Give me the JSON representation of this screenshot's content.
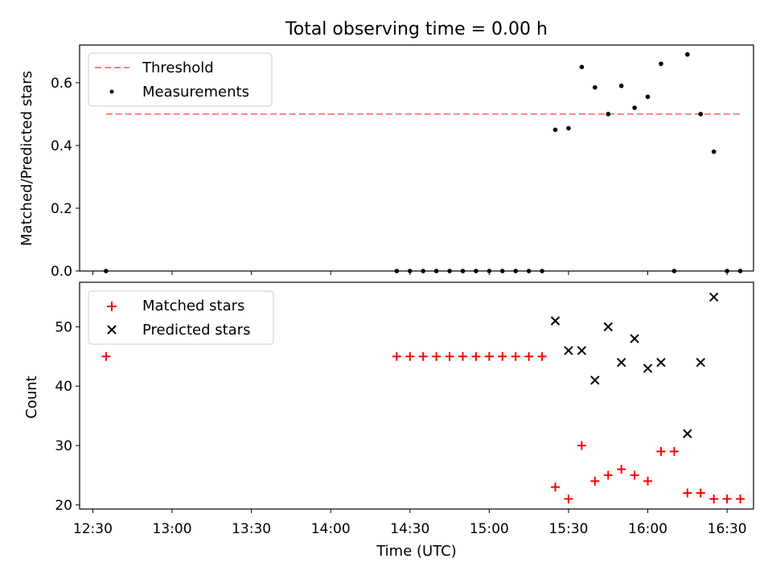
{
  "title": "Total observing time = 0.00 h",
  "xlabel": "Time (UTC)",
  "chart_data": [
    {
      "type": "scatter",
      "ylabel": "Matched/Predicted stars",
      "ylim": [
        0,
        0.72
      ],
      "yticks": [
        0.0,
        0.2,
        0.4,
        0.6
      ],
      "ytick_labels": [
        "0.0",
        "0.2",
        "0.4",
        "0.6"
      ],
      "legend_position": "top-left",
      "threshold": {
        "name": "Threshold",
        "value": 0.5,
        "x_start": "12:35",
        "x_end": "16:35",
        "color": "#ff7f7f"
      },
      "series": [
        {
          "name": "Measurements",
          "color": "#000000",
          "x": [
            "12:35",
            "14:25",
            "14:30",
            "14:35",
            "14:40",
            "14:45",
            "14:50",
            "14:55",
            "15:00",
            "15:05",
            "15:10",
            "15:15",
            "15:20",
            "15:25",
            "15:30",
            "15:35",
            "15:40",
            "15:45",
            "15:50",
            "15:55",
            "16:00",
            "16:05",
            "16:10",
            "16:15",
            "16:20",
            "16:25",
            "16:30",
            "16:35"
          ],
          "y": [
            0,
            0,
            0,
            0,
            0,
            0,
            0,
            0,
            0,
            0,
            0,
            0,
            0,
            0.45,
            0.455,
            0.65,
            0.585,
            0.5,
            0.59,
            0.52,
            0.555,
            0.66,
            0,
            0.69,
            0.5,
            0.38,
            0,
            0
          ]
        }
      ]
    },
    {
      "type": "scatter",
      "ylabel": "Count",
      "ylim": [
        19.3,
        57.5
      ],
      "yticks": [
        20,
        30,
        40,
        50
      ],
      "ytick_labels": [
        "20",
        "30",
        "40",
        "50"
      ],
      "legend_position": "top-left",
      "series": [
        {
          "name": "Matched stars",
          "marker": "plus",
          "color": "#ff0000",
          "x": [
            "12:35",
            "14:25",
            "14:30",
            "14:35",
            "14:40",
            "14:45",
            "14:50",
            "14:55",
            "15:00",
            "15:05",
            "15:10",
            "15:15",
            "15:20",
            "15:25",
            "15:30",
            "15:35",
            "15:40",
            "15:45",
            "15:50",
            "15:55",
            "16:00",
            "16:05",
            "16:10",
            "16:15",
            "16:20",
            "16:25",
            "16:30",
            "16:35"
          ],
          "y": [
            45,
            45,
            45,
            45,
            45,
            45,
            45,
            45,
            45,
            45,
            45,
            45,
            45,
            23,
            21,
            30,
            24,
            25,
            26,
            25,
            24,
            29,
            29,
            22,
            22,
            21,
            21,
            21
          ]
        },
        {
          "name": "Predicted stars",
          "marker": "x",
          "color": "#000000",
          "x": [
            "15:25",
            "15:30",
            "15:35",
            "15:40",
            "15:45",
            "15:50",
            "15:55",
            "16:00",
            "16:05",
            "16:15",
            "16:20",
            "16:25"
          ],
          "y": [
            51,
            46,
            46,
            41,
            50,
            44,
            48,
            43,
            44,
            32,
            44,
            55
          ]
        }
      ]
    }
  ],
  "x_axis": {
    "range": [
      "12:25",
      "16:40"
    ],
    "ticks": [
      "12:30",
      "13:00",
      "13:30",
      "14:00",
      "14:30",
      "15:00",
      "15:30",
      "16:00",
      "16:30"
    ]
  }
}
